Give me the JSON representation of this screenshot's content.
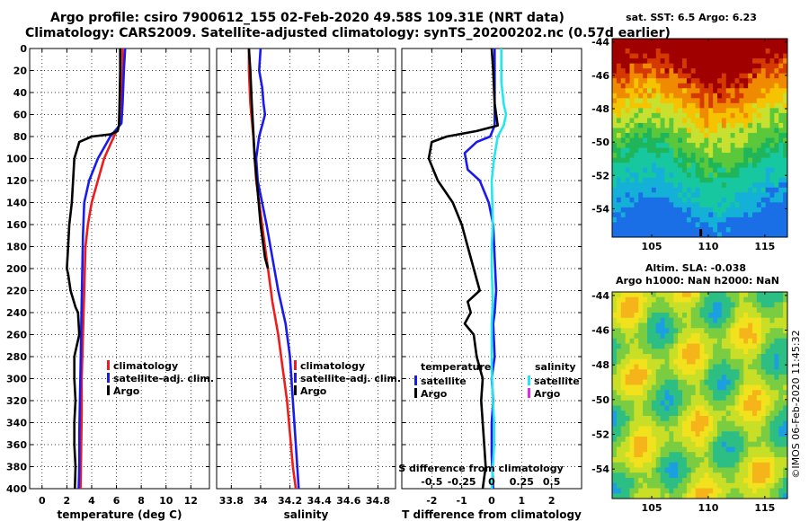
{
  "titles": {
    "line1": "Argo profile: csiro 7900612_155 02-Feb-2020 49.58S 109.31E (NRT data)",
    "line2": "Climatology: CARS2009. Satellite-adjusted climatology: synTS_20200202.nc (0.57d earlier)"
  },
  "colors": {
    "red": "#ee1c1c",
    "blue": "#1a1aee",
    "black": "#000000",
    "cyan": "#22e8ee",
    "magenta": "#ee22ee"
  },
  "chart_data": [
    {
      "type": "line",
      "name": "temperature",
      "xlabel": "temperature (deg C)",
      "xlim": [
        -1,
        13.5
      ],
      "xticks": [
        0,
        2,
        4,
        6,
        8,
        10,
        12
      ],
      "xtick_labels": [
        "0",
        "2",
        "4",
        "6",
        "8",
        "10",
        "12"
      ],
      "ylim": [
        0,
        400
      ],
      "yticks": [
        0,
        20,
        40,
        60,
        80,
        100,
        120,
        140,
        160,
        180,
        200,
        220,
        240,
        260,
        280,
        300,
        320,
        340,
        360,
        380,
        400
      ],
      "ytick_labels": [
        "0",
        "20",
        "40",
        "60",
        "80",
        "100",
        "120",
        "140",
        "160",
        "180",
        "200",
        "220",
        "240",
        "260",
        "280",
        "300",
        "320",
        "340",
        "360",
        "380",
        "400"
      ],
      "series": [
        {
          "name": "climatology",
          "color": "red",
          "x": [
            6.5,
            6.5,
            6.4,
            6.2,
            6.0,
            5.6,
            5.0,
            4.5,
            4.0,
            3.7,
            3.5,
            3.45,
            3.4,
            3.35,
            3.3,
            3.25,
            3.2,
            3.2,
            3.15,
            3.1
          ],
          "y": [
            0,
            20,
            50,
            70,
            75,
            85,
            100,
            120,
            140,
            160,
            180,
            200,
            220,
            240,
            260,
            280,
            300,
            330,
            370,
            400
          ]
        },
        {
          "name": "satellite-adj. clim.",
          "color": "blue",
          "x": [
            6.7,
            6.6,
            6.5,
            6.4,
            6.1,
            5.5,
            4.5,
            3.8,
            3.4,
            3.3,
            3.25,
            3.2,
            3.15,
            3.1,
            3.05,
            3.0,
            3.0,
            2.95
          ],
          "y": [
            0,
            20,
            50,
            68,
            72,
            80,
            100,
            120,
            140,
            170,
            200,
            230,
            260,
            290,
            320,
            350,
            380,
            400
          ]
        },
        {
          "name": "Argo",
          "color": "black",
          "x": [
            6.3,
            6.3,
            6.25,
            6.2,
            6.1,
            5.5,
            4.0,
            3.0,
            2.6,
            2.5,
            2.4,
            2.2,
            2.1,
            2.0,
            2.1,
            2.3,
            2.7,
            2.9,
            3.0,
            2.8,
            2.6,
            2.6,
            2.7,
            2.6,
            2.6,
            2.7,
            2.65
          ],
          "y": [
            0,
            20,
            50,
            70,
            75,
            78,
            80,
            85,
            100,
            120,
            140,
            160,
            180,
            200,
            205,
            220,
            235,
            240,
            260,
            270,
            280,
            300,
            320,
            340,
            360,
            380,
            400
          ]
        }
      ],
      "legend": {
        "position": "bottom-right",
        "labels": [
          "climatology",
          "satellite-adj. clim.",
          "Argo"
        ]
      }
    },
    {
      "type": "line",
      "name": "salinity",
      "xlabel": "salinity",
      "xlim": [
        33.7,
        34.92
      ],
      "xticks": [
        33.8,
        34.0,
        34.2,
        34.4,
        34.6,
        34.8
      ],
      "xtick_labels": [
        "33.8",
        "34",
        "34.2",
        "34.4",
        "34.6",
        "34.8"
      ],
      "ylim": [
        0,
        400
      ],
      "series": [
        {
          "name": "climatology",
          "color": "red",
          "x": [
            33.92,
            33.92,
            33.93,
            33.95,
            33.96,
            33.97,
            33.99,
            34.01,
            34.03,
            34.05,
            34.08,
            34.12,
            34.15,
            34.18,
            34.2,
            34.22,
            34.24
          ],
          "y": [
            0,
            20,
            50,
            80,
            100,
            120,
            140,
            160,
            180,
            200,
            230,
            260,
            290,
            320,
            350,
            380,
            400
          ]
        },
        {
          "name": "satellite-adj. clim.",
          "color": "blue",
          "x": [
            34.0,
            33.99,
            34.01,
            34.02,
            34.03,
            34.01,
            34.0,
            33.99,
            33.97,
            33.98,
            34.01,
            34.04,
            34.08,
            34.12,
            34.17,
            34.2,
            34.22,
            34.24,
            34.26
          ],
          "y": [
            0,
            20,
            35,
            50,
            60,
            70,
            75,
            80,
            100,
            120,
            140,
            160,
            190,
            220,
            250,
            280,
            320,
            360,
            400
          ]
        },
        {
          "name": "Argo",
          "color": "black",
          "x": [
            33.92,
            33.93,
            33.94,
            33.95,
            33.96,
            33.98,
            34.0,
            34.03,
            34.05
          ],
          "y": [
            0,
            20,
            50,
            75,
            100,
            130,
            160,
            190,
            200
          ]
        }
      ],
      "legend": {
        "position": "bottom-right",
        "labels": [
          "climatology",
          "satellite-adj. clim.",
          "Argo"
        ]
      }
    },
    {
      "type": "line",
      "name": "difference",
      "xlabel": "T difference from climatology",
      "xlabel_top": "S difference from climatology",
      "xlim": [
        -3,
        3
      ],
      "xticks": [
        -2,
        -1,
        0,
        1,
        2
      ],
      "xtick_labels": [
        "-2",
        "-1",
        "0",
        "1",
        "2"
      ],
      "sticks": [
        -0.5,
        -0.25,
        0,
        0.25,
        0.5
      ],
      "stick_labels": [
        "-0.5",
        "-0.25",
        "0",
        "0.25",
        "0.5"
      ],
      "s_xlim": [
        -0.75,
        0.75
      ],
      "ylim": [
        0,
        400
      ],
      "series": [
        {
          "name": "temperature satellite",
          "color": "blue",
          "x": [
            0.1,
            0.1,
            0.1,
            0.1,
            -0.05,
            -0.5,
            -0.9,
            -0.8,
            -0.4,
            -0.1,
            0.05,
            0.1,
            0.15,
            0.1,
            0.05,
            0.1,
            0.0,
            0.05,
            0.0,
            0.0,
            0.05
          ],
          "y": [
            0,
            20,
            50,
            70,
            80,
            85,
            95,
            110,
            120,
            140,
            160,
            190,
            220,
            240,
            250,
            280,
            300,
            320,
            340,
            370,
            400
          ]
        },
        {
          "name": "temperature Argo",
          "color": "black",
          "x": [
            0.0,
            0.05,
            0.1,
            0.2,
            -0.5,
            -1.5,
            -2.0,
            -2.1,
            -1.8,
            -1.3,
            -1.0,
            -0.8,
            -0.6,
            -0.4,
            -0.8,
            -0.7,
            -0.9,
            -0.6,
            -0.5,
            -0.3,
            -0.35,
            -0.3,
            -0.25,
            -0.2,
            -0.3
          ],
          "y": [
            0,
            20,
            50,
            70,
            75,
            80,
            85,
            100,
            120,
            140,
            160,
            180,
            200,
            220,
            230,
            240,
            250,
            260,
            280,
            300,
            320,
            340,
            360,
            380,
            400
          ]
        },
        {
          "name": "salinity satellite",
          "color": "cyan",
          "x": [
            0.08,
            0.08,
            0.1,
            0.12,
            0.1,
            0.05,
            0.02,
            0.0,
            0.01,
            0.0,
            0.0,
            0.01,
            0.0,
            0.0,
            0.0,
            0.01,
            0.02,
            0.02,
            0.01,
            0.0
          ],
          "y": [
            0,
            30,
            50,
            60,
            70,
            80,
            100,
            120,
            160,
            180,
            200,
            230,
            250,
            270,
            290,
            320,
            340,
            360,
            380,
            400
          ]
        },
        {
          "name": "salinity Argo",
          "color": "magenta",
          "x": [],
          "y": []
        }
      ],
      "legend": {
        "position": "bottom",
        "headers": [
          "temperature",
          "salinity"
        ],
        "labels": [
          "satellite",
          "Argo",
          "satellite",
          "Argo"
        ]
      }
    },
    {
      "type": "heatmap",
      "name": "sst-map",
      "title": "sat. SST: 6.5 Argo: 6.23",
      "xticks": [
        105,
        110,
        115
      ],
      "xtick_labels": [
        "105",
        "110",
        "115"
      ],
      "xlim": [
        101.5,
        117
      ],
      "ylim": [
        -55.7,
        -43.8
      ],
      "yticks": [
        -44,
        -46,
        -48,
        -50,
        -52,
        -54
      ],
      "ytick_labels": [
        "-44",
        "-46",
        "-48",
        "-50",
        "-52",
        "-54"
      ]
    },
    {
      "type": "heatmap",
      "name": "sla-map",
      "title": "Altim. SLA: -0.038",
      "subtitle": "Argo h1000: NaN h2000: NaN",
      "xticks": [
        105,
        110,
        115
      ],
      "xtick_labels": [
        "105",
        "110",
        "115"
      ],
      "xlim": [
        101.5,
        117
      ],
      "ylim": [
        -55.7,
        -43.8
      ],
      "yticks": [
        -44,
        -46,
        -48,
        -50,
        -52,
        -54
      ],
      "ytick_labels": [
        "-44",
        "-46",
        "-48",
        "-50",
        "-52",
        "-54"
      ]
    }
  ],
  "watermark": "©IMOS 06-Feb-2020 11:45:32"
}
